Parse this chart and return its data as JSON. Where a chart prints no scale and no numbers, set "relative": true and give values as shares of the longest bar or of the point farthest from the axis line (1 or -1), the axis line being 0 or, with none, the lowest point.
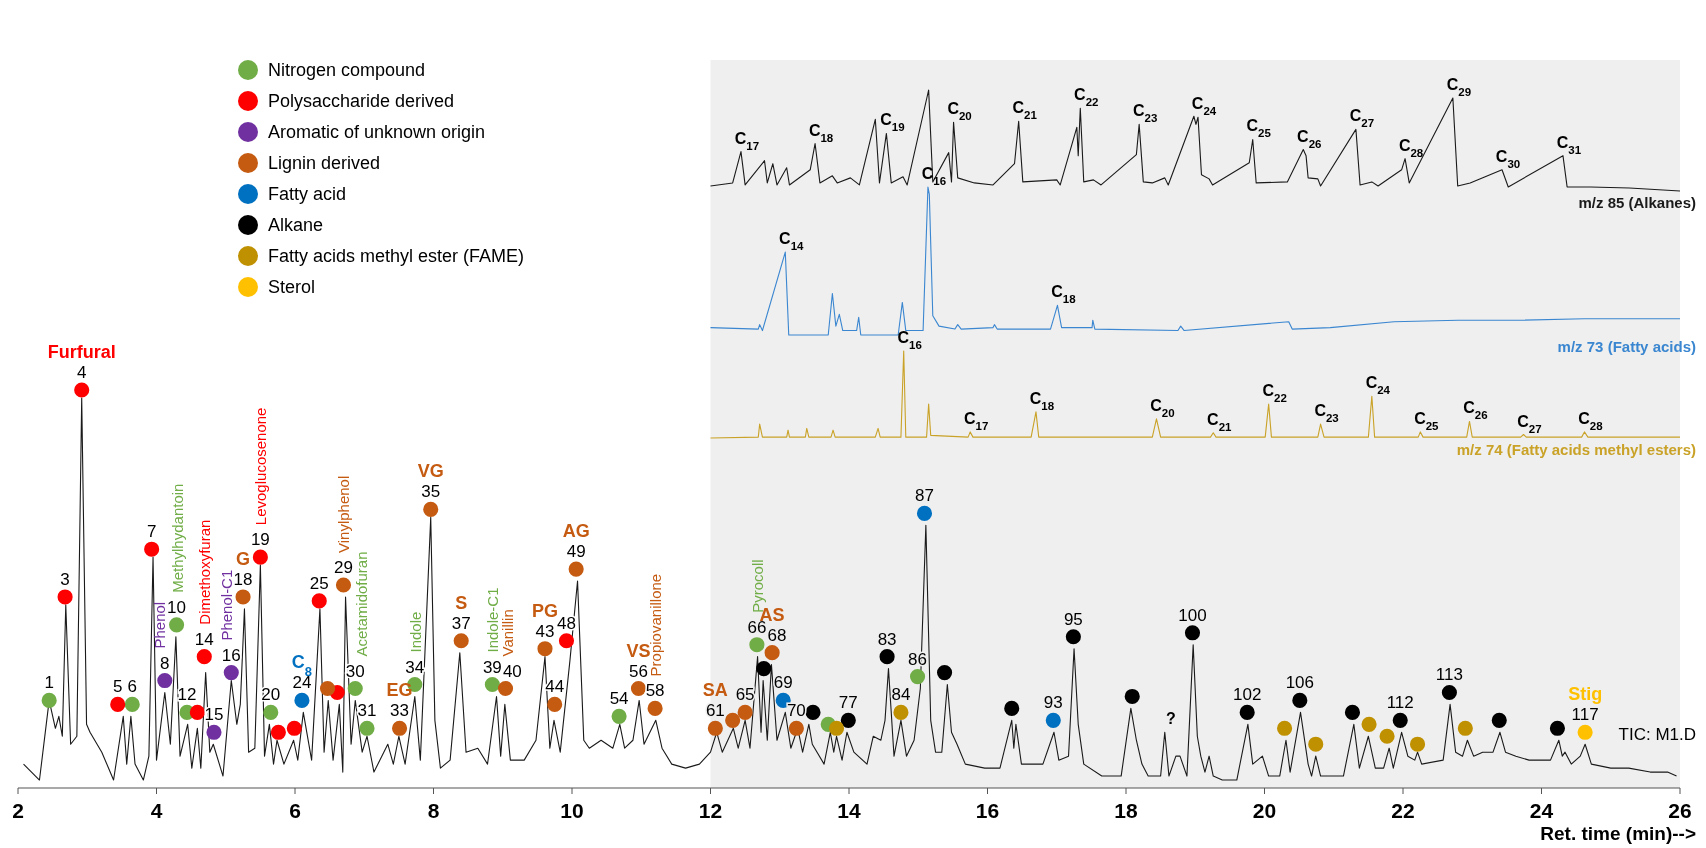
{
  "chart_data": [
    {
      "type": "line",
      "xlim": [
        2,
        26
      ],
      "xticks": [
        2,
        4,
        6,
        8,
        10,
        12,
        14,
        16,
        18,
        20,
        22,
        24,
        26
      ],
      "xlabel": "Ret. time (min)-->",
      "relative": true,
      "legend": "top left",
      "bands": [
        {
          "axis": "x",
          "from": 12,
          "to": 26,
          "color": "#efefef"
        }
      ],
      "annotations": [
        {
          "text": "1",
          "x": 2.45,
          "y": 0.22
        },
        {
          "text": "6",
          "x": 3.65,
          "y": 0.21
        },
        {
          "text": "10",
          "x": 4.29,
          "y": 0.41
        },
        {
          "text": "12",
          "x": 4.44,
          "y": 0.19
        },
        {
          "text": "20",
          "x": 5.65,
          "y": 0.19
        },
        {
          "text": "30",
          "x": 6.87,
          "y": 0.25
        },
        {
          "text": "31",
          "x": 7.04,
          "y": 0.15
        },
        {
          "text": "34",
          "x": 7.73,
          "y": 0.26
        },
        {
          "text": "39",
          "x": 8.85,
          "y": 0.26
        },
        {
          "text": "54",
          "x": 10.68,
          "y": 0.18
        },
        {
          "text": "66",
          "x": 12.67,
          "y": 0.36
        },
        {
          "text": "86",
          "x": 14.99,
          "y": 0.28
        },
        {
          "text": "3",
          "x": 2.68,
          "y": 0.48
        },
        {
          "text": "4",
          "x": 2.92,
          "y": 1.0
        },
        {
          "text": "5",
          "x": 3.44,
          "y": 0.21
        },
        {
          "text": "7",
          "x": 3.93,
          "y": 0.6
        },
        {
          "text": "14",
          "x": 4.69,
          "y": 0.33
        },
        {
          "text": "19",
          "x": 5.5,
          "y": 0.58
        },
        {
          "text": "25",
          "x": 6.35,
          "y": 0.47
        },
        {
          "text": "48",
          "x": 9.92,
          "y": 0.37
        },
        {
          "text": "8",
          "x": 4.12,
          "y": 0.27
        },
        {
          "text": "15",
          "x": 4.83,
          "y": 0.14
        },
        {
          "text": "16",
          "x": 5.08,
          "y": 0.29
        },
        {
          "text": "18",
          "x": 5.25,
          "y": 0.48
        },
        {
          "text": "29",
          "x": 6.7,
          "y": 0.51
        },
        {
          "text": "33",
          "x": 7.51,
          "y": 0.15
        },
        {
          "text": "35",
          "x": 7.96,
          "y": 0.7
        },
        {
          "text": "37",
          "x": 8.4,
          "y": 0.37
        },
        {
          "text": "40",
          "x": 9.04,
          "y": 0.25
        },
        {
          "text": "43",
          "x": 9.61,
          "y": 0.35
        },
        {
          "text": "44",
          "x": 9.75,
          "y": 0.21
        },
        {
          "text": "49",
          "x": 10.06,
          "y": 0.55
        },
        {
          "text": "56",
          "x": 10.96,
          "y": 0.25
        },
        {
          "text": "58",
          "x": 11.2,
          "y": 0.2
        },
        {
          "text": "61",
          "x": 12.07,
          "y": 0.15
        },
        {
          "text": "65",
          "x": 12.5,
          "y": 0.19
        },
        {
          "text": "68",
          "x": 12.89,
          "y": 0.34
        },
        {
          "text": "70",
          "x": 13.24,
          "y": 0.15
        },
        {
          "text": "24",
          "x": 6.1,
          "y": 0.22
        },
        {
          "text": "69",
          "x": 13.05,
          "y": 0.22
        },
        {
          "text": "87",
          "x": 15.09,
          "y": 0.69
        },
        {
          "text": "93",
          "x": 16.95,
          "y": 0.17
        },
        {
          "text": "77",
          "x": 13.99,
          "y": 0.17
        },
        {
          "text": "83",
          "x": 14.55,
          "y": 0.33
        },
        {
          "text": "95",
          "x": 17.24,
          "y": 0.38
        },
        {
          "text": "100",
          "x": 18.96,
          "y": 0.39
        },
        {
          "text": "102",
          "x": 19.75,
          "y": 0.19
        },
        {
          "text": "106",
          "x": 20.51,
          "y": 0.22
        },
        {
          "text": "112",
          "x": 21.96,
          "y": 0.17
        },
        {
          "text": "113",
          "x": 22.67,
          "y": 0.24
        },
        {
          "text": "84",
          "x": 14.75,
          "y": 0.19
        },
        {
          "text": "117",
          "x": 24.63,
          "y": 0.14
        },
        {
          "text": "Furfural",
          "x": 2.92,
          "y": 1.0
        },
        {
          "text": "Methylhydantoin",
          "x": 4.29,
          "y": 0.41
        },
        {
          "text": "Phenol",
          "x": 4.12,
          "y": 0.27
        },
        {
          "text": "Dimethoxyfuran",
          "x": 4.69,
          "y": 0.33
        },
        {
          "text": "Phenol-C1",
          "x": 5.08,
          "y": 0.29
        },
        {
          "text": "G",
          "x": 5.25,
          "y": 0.48
        },
        {
          "text": "Levoglucosenone",
          "x": 5.5,
          "y": 0.58
        },
        {
          "text": "C$_{8}$",
          "x": 6.1,
          "y": 0.22
        },
        {
          "text": "Vinylphenol",
          "x": 6.7,
          "y": 0.51
        },
        {
          "text": "Acetamidofuran",
          "x": 6.87,
          "y": 0.25
        },
        {
          "text": "EG",
          "x": 7.51,
          "y": 0.15
        },
        {
          "text": "Indole",
          "x": 7.73,
          "y": 0.26
        },
        {
          "text": "VG",
          "x": 7.96,
          "y": 0.7
        },
        {
          "text": "S",
          "x": 8.4,
          "y": 0.37
        },
        {
          "text": "Indole-C1",
          "x": 8.85,
          "y": 0.26
        },
        {
          "text": "Vanillin",
          "x": 9.04,
          "y": 0.25
        },
        {
          "text": "PG",
          "x": 9.61,
          "y": 0.35
        },
        {
          "text": "AG",
          "x": 10.06,
          "y": 0.55
        },
        {
          "text": "VS",
          "x": 10.96,
          "y": 0.25
        },
        {
          "text": "Propiovanillone",
          "x": 11.2,
          "y": 0.2
        },
        {
          "text": "SA",
          "x": 12.07,
          "y": 0.15
        },
        {
          "text": "Pyrocoll",
          "x": 12.67,
          "y": 0.36
        },
        {
          "text": "AS",
          "x": 12.89,
          "y": 0.34
        },
        {
          "text": "?",
          "x": 18.56,
          "y": 0.14
        },
        {
          "text": "Stig",
          "x": 24.63,
          "y": 0.14
        },
        "TIC: M1.D"
      ],
      "series": [
        {
          "color": "#1a1a1a",
          "x": [
            2.08,
            2.31,
            2.45,
            2.54,
            2.59,
            2.64,
            2.69,
            2.76,
            2.85,
            2.92,
            2.99,
            3.04,
            3.21,
            3.38,
            3.52,
            3.57,
            3.63,
            3.69,
            3.81,
            3.89,
            3.95,
            4.0,
            4.12,
            4.2,
            4.28,
            4.34,
            4.45,
            4.51,
            4.59,
            4.64,
            4.71,
            4.77,
            4.82,
            4.96,
            5.08,
            5.16,
            5.21,
            5.27,
            5.33,
            5.42,
            5.5,
            5.56,
            5.63,
            5.69,
            5.74,
            5.84,
            5.98,
            6.04,
            6.12,
            6.24,
            6.36,
            6.42,
            6.48,
            6.55,
            6.64,
            6.69,
            6.73,
            6.81,
            6.87,
            6.97,
            7.04,
            7.14,
            7.34,
            7.42,
            7.5,
            7.59,
            7.73,
            7.81,
            7.96,
            8.02,
            8.1,
            8.24,
            8.38,
            8.47,
            8.64,
            8.78,
            8.91,
            8.97,
            9.03,
            9.11,
            9.31,
            9.48,
            9.61,
            9.68,
            9.74,
            9.83,
            9.97,
            10.08,
            10.17,
            10.25,
            10.42,
            10.59,
            10.69,
            10.76,
            10.88,
            10.97,
            11.04,
            11.21,
            11.3,
            11.44,
            11.64,
            11.84,
            12.0,
            12.09,
            12.17,
            12.33,
            12.4,
            12.5,
            12.57,
            12.68,
            12.73,
            12.76,
            12.82,
            12.88,
            12.96,
            13.08,
            13.16,
            13.26,
            13.33,
            13.42,
            13.47,
            13.64,
            13.73,
            13.78,
            13.82,
            13.9,
            13.97,
            14.07,
            14.26,
            14.35,
            14.46,
            14.52,
            14.57,
            14.65,
            14.75,
            14.83,
            14.94,
            15.03,
            15.11,
            15.18,
            15.25,
            15.34,
            15.42,
            15.48,
            15.56,
            15.68,
            15.96,
            16.18,
            16.35,
            16.38,
            16.41,
            16.49,
            16.8,
            16.96,
            17.03,
            17.17,
            17.25,
            17.31,
            17.39,
            17.65,
            17.93,
            18.07,
            18.15,
            18.23,
            18.32,
            18.5,
            18.56,
            18.62,
            18.72,
            18.78,
            18.88,
            18.97,
            19.03,
            19.08,
            19.14,
            19.2,
            19.26,
            19.39,
            19.6,
            19.76,
            19.83,
            19.97,
            20.06,
            20.22,
            20.31,
            20.37,
            20.52,
            20.63,
            20.68,
            20.74,
            20.81,
            21.14,
            21.29,
            21.37,
            21.5,
            21.6,
            21.72,
            21.8,
            21.86,
            21.98,
            22.07,
            22.17,
            22.21,
            22.27,
            22.58,
            22.68,
            22.76,
            22.86,
            22.93,
            23.02,
            23.15,
            23.3,
            23.4,
            23.48,
            23.63,
            23.82,
            24.13,
            24.25,
            24.3,
            24.34,
            24.43,
            24.56,
            24.63,
            24.72,
            25.0,
            25.26,
            25.57,
            25.82,
            25.95
          ],
          "values": [
            0.06,
            0.02,
            0.22,
            0.15,
            0.18,
            0.13,
            0.46,
            0.11,
            0.13,
            0.98,
            0.16,
            0.14,
            0.09,
            0.02,
            0.18,
            0.06,
            0.18,
            0.06,
            0.02,
            0.08,
            0.58,
            0.07,
            0.24,
            0.11,
            0.38,
            0.08,
            0.16,
            0.05,
            0.15,
            0.05,
            0.29,
            0.09,
            0.11,
            0.03,
            0.27,
            0.16,
            0.21,
            0.45,
            0.09,
            0.1,
            0.56,
            0.08,
            0.16,
            0.06,
            0.12,
            0.06,
            0.12,
            0.07,
            0.19,
            0.07,
            0.45,
            0.09,
            0.22,
            0.07,
            0.21,
            0.04,
            0.48,
            0.11,
            0.22,
            0.09,
            0.13,
            0.04,
            0.11,
            0.06,
            0.13,
            0.06,
            0.23,
            0.07,
            0.68,
            0.17,
            0.05,
            0.07,
            0.34,
            0.09,
            0.1,
            0.06,
            0.23,
            0.08,
            0.21,
            0.07,
            0.07,
            0.12,
            0.33,
            0.1,
            0.17,
            0.09,
            0.32,
            0.52,
            0.12,
            0.1,
            0.12,
            0.1,
            0.16,
            0.1,
            0.12,
            0.22,
            0.11,
            0.17,
            0.1,
            0.06,
            0.05,
            0.06,
            0.09,
            0.14,
            0.09,
            0.15,
            0.1,
            0.17,
            0.1,
            0.33,
            0.14,
            0.27,
            0.12,
            0.31,
            0.12,
            0.19,
            0.1,
            0.15,
            0.09,
            0.16,
            0.11,
            0.06,
            0.14,
            0.09,
            0.13,
            0.07,
            0.14,
            0.09,
            0.06,
            0.13,
            0.12,
            0.17,
            0.3,
            0.08,
            0.17,
            0.08,
            0.12,
            0.25,
            0.66,
            0.17,
            0.09,
            0.09,
            0.26,
            0.14,
            0.11,
            0.06,
            0.05,
            0.05,
            0.17,
            0.1,
            0.16,
            0.06,
            0.06,
            0.14,
            0.07,
            0.08,
            0.35,
            0.16,
            0.06,
            0.03,
            0.03,
            0.2,
            0.12,
            0.06,
            0.03,
            0.03,
            0.14,
            0.03,
            0.08,
            0.08,
            0.03,
            0.36,
            0.13,
            0.08,
            0.04,
            0.08,
            0.03,
            0.02,
            0.02,
            0.16,
            0.06,
            0.08,
            0.03,
            0.03,
            0.12,
            0.04,
            0.19,
            0.06,
            0.03,
            0.08,
            0.03,
            0.03,
            0.16,
            0.05,
            0.13,
            0.05,
            0.05,
            0.1,
            0.05,
            0.14,
            0.08,
            0.07,
            0.09,
            0.06,
            0.07,
            0.21,
            0.09,
            0.08,
            0.12,
            0.08,
            0.09,
            0.09,
            0.14,
            0.09,
            0.08,
            0.07,
            0.07,
            0.12,
            0.08,
            0.09,
            0.06,
            0.08,
            0.11,
            0.06,
            0.05,
            0.05,
            0.04,
            0.04,
            0.03
          ]
        },
        {
          "type": "scatter",
          "marker": "circle",
          "name": "Nitrogen compound",
          "color": "#70ad47",
          "x": [
            2.45,
            3.65,
            4.29,
            4.44,
            5.65,
            6.87,
            7.04,
            7.73,
            8.85,
            10.68,
            12.67,
            13.7,
            14.99
          ],
          "values": [
            0.22,
            0.21,
            0.41,
            0.19,
            0.19,
            0.25,
            0.15,
            0.26,
            0.26,
            0.18,
            0.36,
            0.16,
            0.28
          ]
        },
        {
          "type": "scatter",
          "marker": "circle",
          "name": "Polysaccharide derived",
          "color": "#ff0000",
          "x": [
            2.68,
            2.92,
            3.44,
            3.93,
            4.59,
            4.69,
            5.5,
            5.76,
            5.99,
            6.35,
            6.61,
            9.92
          ],
          "values": [
            0.48,
            1.0,
            0.21,
            0.6,
            0.19,
            0.33,
            0.58,
            0.14,
            0.15,
            0.47,
            0.24,
            0.37
          ]
        },
        {
          "type": "scatter",
          "marker": "circle",
          "name": "Aromatic of unknown origin",
          "color": "#7030a0",
          "x": [
            4.12,
            4.83,
            5.08
          ],
          "values": [
            0.27,
            0.14,
            0.29
          ]
        },
        {
          "type": "scatter",
          "marker": "circle",
          "name": "Lignin derived",
          "color": "#c55a11",
          "x": [
            5.25,
            6.47,
            6.7,
            7.51,
            7.96,
            8.4,
            9.04,
            9.61,
            9.75,
            10.06,
            10.96,
            11.2,
            12.07,
            12.32,
            12.5,
            12.89,
            13.24
          ],
          "values": [
            0.48,
            0.25,
            0.51,
            0.15,
            0.7,
            0.37,
            0.25,
            0.35,
            0.21,
            0.55,
            0.25,
            0.2,
            0.15,
            0.17,
            0.19,
            0.34,
            0.15
          ]
        },
        {
          "type": "scatter",
          "marker": "circle",
          "name": "Fatty acid",
          "color": "#0070c0",
          "x": [
            6.1,
            13.05,
            15.09,
            16.95
          ],
          "values": [
            0.22,
            0.22,
            0.69,
            0.17
          ]
        },
        {
          "type": "scatter",
          "marker": "circle",
          "name": "Alkane",
          "color": "#000000",
          "x": [
            12.77,
            13.48,
            13.99,
            14.55,
            15.38,
            16.35,
            17.24,
            18.09,
            18.96,
            19.75,
            20.51,
            21.27,
            21.96,
            22.67,
            23.39,
            24.23
          ],
          "values": [
            0.3,
            0.19,
            0.17,
            0.33,
            0.29,
            0.2,
            0.38,
            0.23,
            0.39,
            0.19,
            0.22,
            0.19,
            0.17,
            0.24,
            0.17,
            0.15
          ]
        },
        {
          "type": "scatter",
          "marker": "circle",
          "name": "Fatty acids methyl ester (FAME)",
          "color": "#bf9000",
          "x": [
            13.82,
            14.75,
            20.29,
            20.74,
            21.51,
            21.77,
            22.21,
            22.9
          ],
          "values": [
            0.15,
            0.19,
            0.15,
            0.11,
            0.16,
            0.13,
            0.11,
            0.15
          ]
        },
        {
          "type": "scatter",
          "marker": "circle",
          "name": "Sterol",
          "color": "#ffc000",
          "x": [
            24.63
          ],
          "values": [
            0.14
          ]
        }
      ]
    },
    {
      "type": "line",
      "title": "m/z 85 (Alkanes)",
      "relative": true,
      "xlim": [
        12,
        26
      ],
      "xticks": [
        12,
        14,
        16,
        18,
        20,
        22,
        24,
        26
      ],
      "tick_labels": false,
      "annotations": [
        {
          "text": "C$_{17}$",
          "x": 12.44,
          "y": 0.39
        },
        {
          "text": "C$_{18}$",
          "x": 13.51,
          "y": 0.47
        },
        {
          "text": "C$_{19}$",
          "x": 14.54,
          "y": 0.57
        },
        {
          "text": "C$_{20}$",
          "x": 15.51,
          "y": 0.68
        },
        {
          "text": "C$_{21}$",
          "x": 16.45,
          "y": 0.69
        },
        {
          "text": "C$_{22}$",
          "x": 17.34,
          "y": 0.82
        },
        {
          "text": "C$_{23}$",
          "x": 18.19,
          "y": 0.66
        },
        {
          "text": "C$_{24}$",
          "x": 19.04,
          "y": 0.73
        },
        {
          "text": "C$_{25}$",
          "x": 19.83,
          "y": 0.51
        },
        {
          "text": "C$_{26}$",
          "x": 20.56,
          "y": 0.41
        },
        {
          "text": "C$_{27}$",
          "x": 21.32,
          "y": 0.61
        },
        {
          "text": "C$_{28}$",
          "x": 22.03,
          "y": 0.32
        },
        {
          "text": "C$_{29}$",
          "x": 22.72,
          "y": 0.92
        },
        {
          "text": "C$_{30}$",
          "x": 23.43,
          "y": 0.21
        },
        {
          "text": "C$_{31}$",
          "x": 24.31,
          "y": 0.35
        }
      ],
      "series": [
        {
          "color": "#1a1a1a",
          "x": [
            12.0,
            12.32,
            12.44,
            12.5,
            12.78,
            12.82,
            12.9,
            12.96,
            13.1,
            13.14,
            13.44,
            13.51,
            13.58,
            13.76,
            13.83,
            14.02,
            14.15,
            14.38,
            14.44,
            14.54,
            14.61,
            14.78,
            14.84,
            15.15,
            15.21,
            15.44,
            15.48,
            15.51,
            15.57,
            15.81,
            16.08,
            16.39,
            16.45,
            16.51,
            17.0,
            17.05,
            17.29,
            17.31,
            17.34,
            17.39,
            17.53,
            17.64,
            18.15,
            18.19,
            18.25,
            18.38,
            18.56,
            18.61,
            18.98,
            19.01,
            19.04,
            19.09,
            19.2,
            19.25,
            19.78,
            19.83,
            19.88,
            20.33,
            20.56,
            20.6,
            20.63,
            20.77,
            20.81,
            21.32,
            21.38,
            21.55,
            21.64,
            21.98,
            22.03,
            22.09,
            22.72,
            22.79,
            22.97,
            23.43,
            23.52,
            24.31,
            24.37,
            24.71,
            25.27,
            26.0
          ],
          "values": [
            0.05,
            0.08,
            0.39,
            0.06,
            0.3,
            0.08,
            0.27,
            0.06,
            0.23,
            0.06,
            0.21,
            0.47,
            0.08,
            0.15,
            0.08,
            0.13,
            0.06,
            0.71,
            0.08,
            0.57,
            0.08,
            0.14,
            0.06,
            1.0,
            0.09,
            0.38,
            0.09,
            0.68,
            0.13,
            0.08,
            0.06,
            0.27,
            0.69,
            0.09,
            0.11,
            0.06,
            0.63,
            0.35,
            0.82,
            0.09,
            0.11,
            0.06,
            0.36,
            0.66,
            0.09,
            0.08,
            0.13,
            0.06,
            0.74,
            0.66,
            0.73,
            0.16,
            0.12,
            0.06,
            0.28,
            0.51,
            0.08,
            0.09,
            0.41,
            0.35,
            0.13,
            0.12,
            0.05,
            0.61,
            0.06,
            0.09,
            0.05,
            0.21,
            0.32,
            0.08,
            0.92,
            0.05,
            0.08,
            0.21,
            0.04,
            0.35,
            0.04,
            0.04,
            0.03,
            0
          ]
        }
      ]
    },
    {
      "type": "line",
      "title": "m/z 73 (Fatty acids)",
      "relative": true,
      "xlim": [
        12,
        26
      ],
      "xticks": [
        12,
        14,
        16,
        18,
        20,
        22,
        24,
        26
      ],
      "tick_labels": false,
      "annotations": [
        {
          "text": "C$_{14}$",
          "x": 13.08,
          "y": 0.56
        },
        {
          "text": "C$_{16}$",
          "x": 15.14,
          "y": 1.0
        },
        {
          "text": "C$_{18}$",
          "x": 17.01,
          "y": 0.2
        }
      ],
      "series": [
        {
          "color": "#3a86d0",
          "x": [
            12.0,
            12.69,
            12.71,
            12.75,
            13.08,
            13.13,
            13.7,
            13.76,
            13.81,
            13.86,
            13.91,
            14.11,
            14.14,
            14.17,
            14.71,
            14.77,
            14.82,
            15.07,
            15.14,
            15.16,
            15.21,
            15.3,
            15.53,
            15.57,
            15.62,
            16.08,
            16.1,
            16.14,
            16.91,
            17.01,
            17.07,
            17.51,
            17.52,
            17.55,
            18.75,
            18.79,
            18.84,
            20.35,
            20.4,
            20.95,
            21.87,
            22.79,
            23.7,
            24.62,
            26.0
          ],
          "values": [
            0.05,
            0.04,
            0.07,
            0.03,
            0.56,
            0,
            0,
            0.28,
            0.06,
            0.14,
            0.03,
            0.03,
            0.12,
            0,
            0,
            0.22,
            0.03,
            0.03,
            1.0,
            0.95,
            0.13,
            0.06,
            0.04,
            0.07,
            0.04,
            0.05,
            0.07,
            0.04,
            0.04,
            0.2,
            0.05,
            0.05,
            0.1,
            0.04,
            0.03,
            0.06,
            0.03,
            0.09,
            0.04,
            0.05,
            0.09,
            0.1,
            0.1,
            0.11,
            0.11
          ]
        }
      ]
    },
    {
      "type": "line",
      "title": "m/z 74 (Fatty acids methyl esters)",
      "relative": true,
      "xlim": [
        12,
        26
      ],
      "xticks": [
        12,
        14,
        16,
        18,
        20,
        22,
        24,
        26
      ],
      "tick_labels": false,
      "annotations": [
        {
          "text": "C$_{16}$",
          "x": 14.79,
          "y": 1.0
        },
        {
          "text": "C$_{17}$",
          "x": 15.75,
          "y": 0.07
        },
        {
          "text": "C$_{18}$",
          "x": 16.7,
          "y": 0.3
        },
        {
          "text": "C$_{20}$",
          "x": 18.44,
          "y": 0.22
        },
        {
          "text": "C$_{21}$",
          "x": 19.26,
          "y": 0.06
        },
        {
          "text": "C$_{22}$",
          "x": 20.06,
          "y": 0.39
        },
        {
          "text": "C$_{23}$",
          "x": 20.81,
          "y": 0.16
        },
        {
          "text": "C$_{24}$",
          "x": 21.55,
          "y": 0.48
        },
        {
          "text": "C$_{25}$",
          "x": 22.25,
          "y": 0.07
        },
        {
          "text": "C$_{26}$",
          "x": 22.96,
          "y": 0.19
        },
        {
          "text": "C$_{27}$",
          "x": 23.74,
          "y": 0.04
        },
        {
          "text": "C$_{28}$",
          "x": 24.62,
          "y": 0.07
        }
      ],
      "series": [
        {
          "color": "#c9a227",
          "x": [
            12.0,
            12.69,
            12.71,
            12.75,
            13.1,
            13.12,
            13.14,
            13.37,
            13.39,
            13.42,
            13.74,
            13.77,
            13.8,
            14.38,
            14.42,
            14.45,
            14.75,
            14.79,
            14.82,
            15.12,
            15.15,
            15.18,
            15.72,
            15.75,
            15.79,
            16.63,
            16.7,
            16.74,
            18.38,
            18.44,
            18.5,
            19.22,
            19.26,
            19.3,
            20.01,
            20.06,
            20.1,
            20.77,
            20.81,
            20.86,
            21.5,
            21.55,
            21.59,
            22.22,
            22.25,
            22.29,
            22.92,
            22.96,
            23.0,
            23.7,
            23.74,
            23.78,
            24.58,
            24.62,
            24.67,
            26.0
          ],
          "values": [
            0,
            0.01,
            0.16,
            0.01,
            0.01,
            0.09,
            0.01,
            0.01,
            0.11,
            0.01,
            0.01,
            0.09,
            0.01,
            0.01,
            0.11,
            0.01,
            0.01,
            1.0,
            0.01,
            0.01,
            0.39,
            0.03,
            0.01,
            0.07,
            0.01,
            0.01,
            0.3,
            0.01,
            0.01,
            0.22,
            0.01,
            0.01,
            0.06,
            0.01,
            0.01,
            0.39,
            0.01,
            0.01,
            0.16,
            0.01,
            0.01,
            0.48,
            0.01,
            0.01,
            0.07,
            0.01,
            0.01,
            0.19,
            0.01,
            0.01,
            0.04,
            0.01,
            0.01,
            0.07,
            0.01,
            0.01
          ]
        }
      ]
    }
  ]
}
